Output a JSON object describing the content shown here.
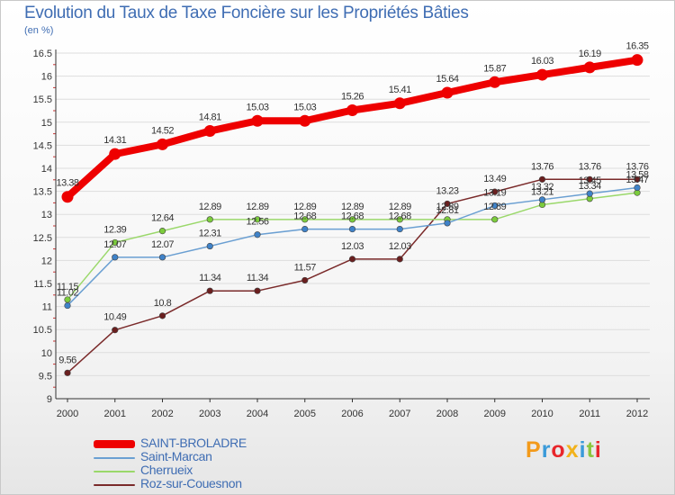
{
  "chart_data": {
    "type": "line",
    "title": "Evolution du Taux de Taxe Foncière sur les Propriétés Bâties",
    "ylabel": "(en %)",
    "xlabel": "",
    "ylim": [
      9,
      16.5
    ],
    "yticks": [
      "9",
      "9.5",
      "10",
      "10.5",
      "11",
      "11.5",
      "12",
      "12.5",
      "13",
      "13.5",
      "14",
      "14.5",
      "15",
      "15.5",
      "16",
      "16.5"
    ],
    "categories": [
      "2000",
      "2001",
      "2002",
      "2003",
      "2004",
      "2005",
      "2006",
      "2007",
      "2008",
      "2009",
      "2010",
      "2011",
      "2012"
    ],
    "series": [
      {
        "name": "SAINT-BROLADRE",
        "color": "#ee0000",
        "values": [
          13.38,
          14.31,
          14.52,
          14.81,
          15.03,
          15.03,
          15.26,
          15.41,
          15.64,
          15.87,
          16.03,
          16.19,
          16.35
        ],
        "labels": [
          "13.38",
          "14.31",
          "14.52",
          "14.81",
          "15.03",
          "15.03",
          "15.26",
          "15.41",
          "15.64",
          "15.87",
          "16.03",
          "16.19",
          "16.35"
        ]
      },
      {
        "name": "Saint-Marcan",
        "color": "#6a9fd2",
        "marker": "#3f82c8",
        "values": [
          11.02,
          12.07,
          12.07,
          12.31,
          12.56,
          12.68,
          12.68,
          12.68,
          12.81,
          13.19,
          13.32,
          13.45,
          13.58
        ],
        "labels": [
          "11.02",
          "12.07",
          "12.07",
          "12.31",
          "12.56",
          "12.68",
          "12.68",
          "12.68",
          "12.81",
          "13.19",
          "13.32",
          "13.45",
          "13.58"
        ]
      },
      {
        "name": "Cherrueix",
        "color": "#9ad86a",
        "marker": "#7ccc3c",
        "values": [
          11.15,
          12.39,
          12.64,
          12.89,
          12.89,
          12.89,
          12.89,
          12.89,
          12.89,
          12.89,
          13.21,
          13.34,
          13.47
        ],
        "labels": [
          "11.15",
          "12.39",
          "12.64",
          "12.89",
          "12.89",
          "12.89",
          "12.89",
          "12.89",
          "12.89",
          "12.89",
          "13.21",
          "13.34",
          "13.47"
        ]
      },
      {
        "name": "Roz-sur-Couesnon",
        "color": "#7a2a2a",
        "marker": "#6a1f1f",
        "values": [
          9.56,
          10.49,
          10.8,
          11.34,
          11.34,
          11.57,
          12.03,
          12.03,
          13.23,
          13.49,
          13.76,
          13.76,
          13.76
        ],
        "labels": [
          "9.56",
          "10.49",
          "10.8",
          "11.34",
          "11.34",
          "11.57",
          "12.03",
          "12.03",
          "13.23",
          "13.49",
          "13.76",
          "13.76",
          "13.76"
        ]
      }
    ],
    "legend_position": "bottom-left"
  },
  "logo": {
    "text": "Proxiti",
    "colors": [
      "#f39a1a",
      "#3a9ad9",
      "#e8262b",
      "#f2b21b",
      "#3a9ad9",
      "#8cc63f",
      "#e8262b"
    ]
  }
}
